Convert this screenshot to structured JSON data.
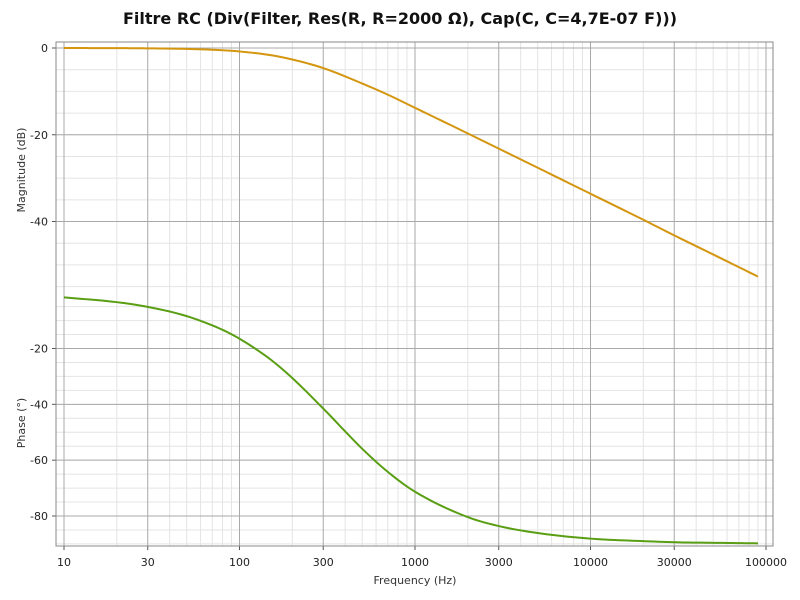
{
  "chart": {
    "title": "Filtre RC (Div(Filter, Res(R, R=2000 Ω), Cap(C, C=4,7E-07 F)))",
    "xlabel": "Frequency (Hz)",
    "magnitude_ylabel": "Magnitude (dB)",
    "phase_ylabel": "Phase (°)"
  },
  "colors": {
    "magnitude": "#d4960f",
    "phase": "#5a9e14",
    "major_grid": "#a9a9a9",
    "minor_grid": "#e4e4e4"
  },
  "chart_data": [
    {
      "type": "line",
      "name": "magnitude",
      "xscale": "log",
      "xlim": [
        10,
        100000
      ],
      "ylim": [
        -55,
        0
      ],
      "x_ticks": [
        10,
        30,
        100,
        300,
        1000,
        3000,
        10000,
        30000,
        100000
      ],
      "x_tick_labels": [
        "10",
        "30",
        "100",
        "300",
        "1000",
        "3000",
        "10000",
        "30000",
        "100000"
      ],
      "y_ticks": [
        0,
        -20,
        -40
      ],
      "y_tick_labels": [
        "0",
        "-20",
        "-40"
      ],
      "grid": true,
      "series": [
        {
          "x": [
            10,
            20,
            30,
            50,
            80,
            100,
            150,
            200,
            300,
            500,
            700,
            1000,
            2000,
            3000,
            5000,
            10000,
            20000,
            30000,
            50000,
            90000
          ],
          "y": [
            -0.01,
            -0.03,
            -0.08,
            -0.21,
            -0.52,
            -0.8,
            -1.64,
            -2.65,
            -4.63,
            -8.18,
            -10.76,
            -13.79,
            -19.7,
            -23.2,
            -27.6,
            -33.6,
            -39.6,
            -43.2,
            -47.6,
            -52.7
          ]
        }
      ]
    },
    {
      "type": "line",
      "name": "phase",
      "xscale": "log",
      "xlim": [
        10,
        100000
      ],
      "ylim": [
        -90,
        0
      ],
      "x_ticks": [
        10,
        30,
        100,
        300,
        1000,
        3000,
        10000,
        30000,
        100000
      ],
      "x_tick_labels": [
        "10",
        "30",
        "100",
        "300",
        "1000",
        "3000",
        "10000",
        "30000",
        "100000"
      ],
      "y_ticks": [
        -20,
        -40,
        -60,
        -80
      ],
      "y_tick_labels": [
        "-20",
        "-40",
        "-60",
        "-80"
      ],
      "grid": true,
      "series": [
        {
          "x": [
            10,
            20,
            30,
            50,
            80,
            100,
            150,
            200,
            300,
            500,
            700,
            1000,
            2000,
            3000,
            5000,
            10000,
            20000,
            30000,
            50000,
            90000
          ],
          "y": [
            -1.7,
            -3.4,
            -5.1,
            -8.4,
            -13.3,
            -16.5,
            -23.9,
            -30.6,
            -41.5,
            -55.9,
            -64.2,
            -71.3,
            -80.4,
            -83.6,
            -86.1,
            -88.1,
            -89.0,
            -89.4,
            -89.6,
            -89.8
          ]
        }
      ]
    }
  ]
}
